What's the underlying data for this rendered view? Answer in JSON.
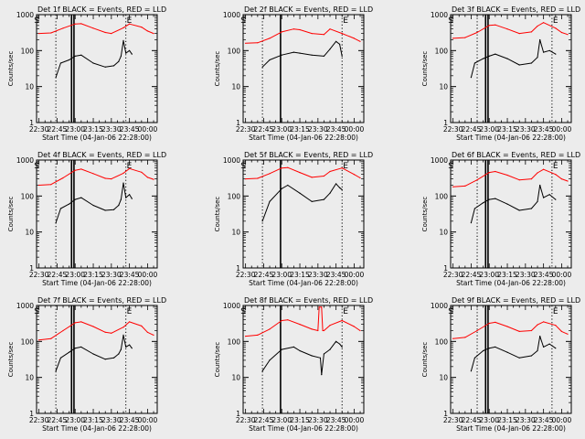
{
  "figure": {
    "ylabel": "Counts/sec",
    "xlabel": "Start Time (04-Jan-06 22:28:00)",
    "x_ticks": [
      "22:30",
      "22:45",
      "23:00",
      "23:15",
      "23:30",
      "23:45",
      "00:00"
    ],
    "y_ticks": [
      "1",
      "10",
      "100",
      "1000"
    ],
    "colors": {
      "events": "#000000",
      "lld": "#ff0000",
      "background": "#ececec"
    }
  },
  "chart_data": [
    {
      "type": "line",
      "title": "Det 1f BLACK = Events, RED = LLD",
      "xlabel": "Start Time (04-Jan-06 22:28:00)",
      "ylabel": "Counts/sec",
      "log_y": true,
      "ylim": [
        1,
        1000
      ],
      "xlim": [
        "22:28",
        "00:08"
      ],
      "grid": false,
      "markers": {
        "dotted": [
          "22:44",
          "23:42"
        ],
        "solid": [
          "22:57",
          "22:59"
        ],
        "S_label": "22:32",
        "E_label": "23:42"
      },
      "series": [
        {
          "name": "BLACK = Events",
          "color": "#000000",
          "x": [
            "22:44",
            "22:48",
            "22:55",
            "23:00",
            "23:05",
            "23:15",
            "23:25",
            "23:32",
            "23:36",
            "23:38",
            "23:40",
            "23:42",
            "23:45",
            "23:47"
          ],
          "y": [
            18,
            45,
            55,
            70,
            75,
            45,
            35,
            38,
            50,
            70,
            190,
            85,
            100,
            80
          ]
        },
        {
          "name": "RED = LLD",
          "color": "#ff0000",
          "x": [
            "22:30",
            "22:40",
            "22:50",
            "23:00",
            "23:05",
            "23:15",
            "23:25",
            "23:30",
            "23:40",
            "23:45",
            "23:55",
            "00:00",
            "00:05"
          ],
          "y": [
            300,
            310,
            420,
            550,
            560,
            420,
            320,
            300,
            430,
            550,
            450,
            350,
            300
          ]
        }
      ]
    },
    {
      "type": "line",
      "title": "Det 2f BLACK = Events, RED = LLD",
      "xlabel": "Start Time (04-Jan-06 22:28:00)",
      "ylabel": "Counts/sec",
      "log_y": true,
      "ylim": [
        1,
        1000
      ],
      "xlim": [
        "22:28",
        "00:08"
      ],
      "grid": false,
      "markers": {
        "dotted": [
          "22:44",
          "23:50"
        ],
        "solid": [
          "22:59"
        ],
        "S_label": "22:32",
        "E_label": "23:50"
      },
      "series": [
        {
          "name": "BLACK = Events",
          "color": "#000000",
          "x": [
            "22:44",
            "22:50",
            "23:00",
            "23:10",
            "23:15",
            "23:25",
            "23:35",
            "23:40",
            "23:45",
            "23:48",
            "23:50"
          ],
          "y": [
            35,
            55,
            75,
            90,
            85,
            75,
            70,
            110,
            180,
            150,
            70
          ]
        },
        {
          "name": "RED = LLD",
          "color": "#ff0000",
          "x": [
            "22:30",
            "22:40",
            "22:50",
            "23:00",
            "23:10",
            "23:15",
            "23:25",
            "23:35",
            "23:40",
            "23:50",
            "00:00",
            "00:05"
          ],
          "y": [
            160,
            165,
            220,
            330,
            400,
            380,
            300,
            280,
            400,
            300,
            220,
            180
          ]
        }
      ]
    },
    {
      "type": "line",
      "title": "Det 3f BLACK = Events, RED = LLD",
      "xlabel": "Start Time (04-Jan-06 22:28:00)",
      "ylabel": "Counts/sec",
      "log_y": true,
      "ylim": [
        1,
        1000
      ],
      "xlim": [
        "22:28",
        "00:08"
      ],
      "grid": false,
      "markers": {
        "dotted": [
          "22:50",
          "23:52"
        ],
        "solid": [
          "22:57",
          "22:59"
        ],
        "S_label": "22:32",
        "E_label": "23:52"
      },
      "series": [
        {
          "name": "BLACK = Events",
          "color": "#000000",
          "x": [
            "22:45",
            "22:48",
            "22:55",
            "23:00",
            "23:05",
            "23:15",
            "23:25",
            "23:35",
            "23:40",
            "23:42",
            "23:45",
            "23:50",
            "23:55"
          ],
          "y": [
            18,
            45,
            60,
            70,
            80,
            60,
            40,
            45,
            65,
            200,
            90,
            100,
            80
          ]
        },
        {
          "name": "RED = LLD",
          "color": "#ff0000",
          "x": [
            "22:30",
            "22:40",
            "22:50",
            "23:00",
            "23:05",
            "23:15",
            "23:25",
            "23:35",
            "23:40",
            "23:45",
            "23:55",
            "00:00",
            "00:05"
          ],
          "y": [
            220,
            230,
            320,
            500,
            520,
            400,
            300,
            330,
            480,
            600,
            420,
            320,
            280
          ]
        }
      ]
    },
    {
      "type": "line",
      "title": "Det 4f BLACK = Events, RED = LLD",
      "xlabel": "Start Time (04-Jan-06 22:28:00)",
      "ylabel": "Counts/sec",
      "log_y": true,
      "ylim": [
        1,
        1000
      ],
      "xlim": [
        "22:28",
        "00:08"
      ],
      "grid": false,
      "markers": {
        "dotted": [
          "22:44",
          "23:42"
        ],
        "solid": [
          "22:57",
          "22:59"
        ],
        "S_label": "22:32",
        "E_label": "23:42"
      },
      "series": [
        {
          "name": "BLACK = Events",
          "color": "#000000",
          "x": [
            "22:44",
            "22:48",
            "22:55",
            "23:00",
            "23:05",
            "23:15",
            "23:25",
            "23:32",
            "23:36",
            "23:38",
            "23:40",
            "23:42",
            "23:45",
            "23:47"
          ],
          "y": [
            18,
            45,
            60,
            80,
            90,
            55,
            40,
            42,
            55,
            80,
            230,
            90,
            110,
            85
          ]
        },
        {
          "name": "RED = LLD",
          "color": "#ff0000",
          "x": [
            "22:30",
            "22:40",
            "22:50",
            "23:00",
            "23:05",
            "23:15",
            "23:25",
            "23:30",
            "23:40",
            "23:45",
            "23:55",
            "00:00",
            "00:05"
          ],
          "y": [
            200,
            210,
            320,
            520,
            560,
            420,
            310,
            300,
            430,
            580,
            460,
            330,
            290
          ]
        }
      ]
    },
    {
      "type": "line",
      "title": "Det 5f BLACK = Events, RED = LLD",
      "xlabel": "Start Time (04-Jan-06 22:28:00)",
      "ylabel": "Counts/sec",
      "log_y": true,
      "ylim": [
        1,
        1000
      ],
      "xlim": [
        "22:28",
        "00:08"
      ],
      "grid": false,
      "markers": {
        "dotted": [
          "22:44",
          "23:50"
        ],
        "solid": [
          "22:59"
        ],
        "S_label": "22:32",
        "E_label": "23:50"
      },
      "series": [
        {
          "name": "BLACK = Events",
          "color": "#000000",
          "x": [
            "22:44",
            "22:50",
            "23:00",
            "23:05",
            "23:15",
            "23:25",
            "23:35",
            "23:40",
            "23:45",
            "23:48",
            "23:50"
          ],
          "y": [
            20,
            70,
            160,
            200,
            120,
            70,
            80,
            120,
            220,
            170,
            150
          ]
        },
        {
          "name": "RED = LLD",
          "color": "#ff0000",
          "x": [
            "22:30",
            "22:40",
            "22:50",
            "23:00",
            "23:05",
            "23:15",
            "23:25",
            "23:35",
            "23:40",
            "23:50",
            "00:00",
            "00:05"
          ],
          "y": [
            300,
            310,
            420,
            600,
            620,
            450,
            330,
            360,
            480,
            600,
            400,
            320
          ]
        }
      ]
    },
    {
      "type": "line",
      "title": "Det 6f BLACK = Events, RED = LLD",
      "xlabel": "Start Time (04-Jan-06 22:28:00)",
      "ylabel": "Counts/sec",
      "log_y": true,
      "ylim": [
        1,
        1000
      ],
      "xlim": [
        "22:28",
        "00:08"
      ],
      "grid": false,
      "markers": {
        "dotted": [
          "22:50",
          "23:52"
        ],
        "solid": [
          "22:57",
          "22:59"
        ],
        "S_label": "22:32",
        "E_label": "23:52"
      },
      "series": [
        {
          "name": "BLACK = Events",
          "color": "#000000",
          "x": [
            "22:45",
            "22:48",
            "22:55",
            "23:00",
            "23:05",
            "23:15",
            "23:25",
            "23:35",
            "23:40",
            "23:42",
            "23:45",
            "23:50",
            "23:55"
          ],
          "y": [
            18,
            45,
            65,
            80,
            85,
            60,
            40,
            45,
            70,
            200,
            90,
            110,
            80
          ]
        },
        {
          "name": "RED = LLD",
          "color": "#ff0000",
          "x": [
            "22:30",
            "22:40",
            "22:50",
            "23:00",
            "23:05",
            "23:15",
            "23:25",
            "23:35",
            "23:40",
            "23:45",
            "23:55",
            "00:00",
            "00:05"
          ],
          "y": [
            180,
            190,
            280,
            450,
            480,
            380,
            280,
            300,
            440,
            550,
            400,
            300,
            260
          ]
        }
      ]
    },
    {
      "type": "line",
      "title": "Det 7f BLACK = Events, RED = LLD",
      "xlabel": "Start Time (04-Jan-06 22:28:00)",
      "ylabel": "Counts/sec",
      "log_y": true,
      "ylim": [
        1,
        1000
      ],
      "xlim": [
        "22:28",
        "00:08"
      ],
      "grid": false,
      "markers": {
        "dotted": [
          "22:44",
          "23:42"
        ],
        "solid": [
          "22:57",
          "22:59"
        ],
        "S_label": "22:32",
        "E_label": "23:42"
      },
      "series": [
        {
          "name": "BLACK = Events",
          "color": "#000000",
          "x": [
            "22:44",
            "22:48",
            "22:55",
            "23:00",
            "23:05",
            "23:15",
            "23:25",
            "23:32",
            "23:36",
            "23:38",
            "23:40",
            "23:42",
            "23:45",
            "23:47"
          ],
          "y": [
            15,
            35,
            50,
            65,
            70,
            45,
            32,
            35,
            45,
            60,
            150,
            70,
            80,
            65
          ]
        },
        {
          "name": "RED = LLD",
          "color": "#ff0000",
          "x": [
            "22:30",
            "22:40",
            "22:50",
            "23:00",
            "23:05",
            "23:15",
            "23:25",
            "23:30",
            "23:40",
            "23:45",
            "23:55",
            "00:00",
            "00:05"
          ],
          "y": [
            110,
            120,
            200,
            330,
            350,
            260,
            180,
            170,
            250,
            350,
            270,
            180,
            150
          ]
        }
      ]
    },
    {
      "type": "line",
      "title": "Det 8f BLACK = Events, RED = LLD",
      "xlabel": "Start Time (04-Jan-06 22:28:00)",
      "ylabel": "Counts/sec",
      "log_y": true,
      "ylim": [
        1,
        1000
      ],
      "xlim": [
        "22:28",
        "00:08"
      ],
      "grid": false,
      "markers": {
        "dotted": [
          "22:44",
          "23:50"
        ],
        "solid": [
          "22:59"
        ],
        "S_label": "22:32",
        "E_label": "23:50"
      },
      "series": [
        {
          "name": "BLACK = Events",
          "color": "#000000",
          "x": [
            "22:44",
            "22:50",
            "23:00",
            "23:10",
            "23:15",
            "23:25",
            "23:32",
            "23:33",
            "23:35",
            "23:40",
            "23:45",
            "23:48",
            "23:50"
          ],
          "y": [
            15,
            30,
            60,
            70,
            55,
            40,
            35,
            12,
            45,
            60,
            100,
            85,
            70
          ]
        },
        {
          "name": "RED = LLD",
          "color": "#ff0000",
          "x": [
            "22:30",
            "22:40",
            "22:50",
            "23:00",
            "23:05",
            "23:15",
            "23:25",
            "23:30",
            "23:31",
            "23:33",
            "23:34",
            "23:35",
            "23:40",
            "23:50",
            "00:00",
            "00:05"
          ],
          "y": [
            140,
            150,
            220,
            380,
            400,
            300,
            220,
            200,
            900,
            900,
            200,
            200,
            280,
            380,
            260,
            200
          ]
        }
      ]
    },
    {
      "type": "line",
      "title": "Det 9f BLACK = Events, RED = LLD",
      "xlabel": "Start Time (04-Jan-06 22:28:00)",
      "ylabel": "Counts/sec",
      "log_y": true,
      "ylim": [
        1,
        1000
      ],
      "xlim": [
        "22:28",
        "00:08"
      ],
      "grid": false,
      "markers": {
        "dotted": [
          "22:50",
          "23:52"
        ],
        "solid": [
          "22:57",
          "22:59"
        ],
        "S_label": "22:32",
        "E_label": "23:52"
      },
      "series": [
        {
          "name": "BLACK = Events",
          "color": "#000000",
          "x": [
            "22:45",
            "22:48",
            "22:55",
            "23:00",
            "23:05",
            "23:15",
            "23:25",
            "23:35",
            "23:40",
            "23:42",
            "23:45",
            "23:50",
            "23:55"
          ],
          "y": [
            15,
            35,
            55,
            65,
            70,
            50,
            35,
            40,
            55,
            140,
            70,
            85,
            65
          ]
        },
        {
          "name": "RED = LLD",
          "color": "#ff0000",
          "x": [
            "22:30",
            "22:40",
            "22:50",
            "23:00",
            "23:05",
            "23:15",
            "23:25",
            "23:35",
            "23:40",
            "23:45",
            "23:55",
            "00:00",
            "00:05"
          ],
          "y": [
            120,
            130,
            200,
            320,
            340,
            260,
            190,
            200,
            290,
            350,
            280,
            190,
            160
          ]
        }
      ]
    }
  ]
}
